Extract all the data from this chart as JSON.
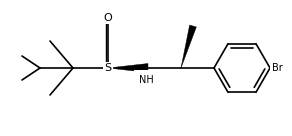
{
  "bg_color": "#ffffff",
  "line_color": "#000000",
  "line_width": 1.2,
  "label_S": "S",
  "label_O": "O",
  "label_NH": "NH",
  "label_Br": "Br",
  "font_size": 7,
  "fig_width": 2.92,
  "fig_height": 1.36,
  "dpi": 100
}
